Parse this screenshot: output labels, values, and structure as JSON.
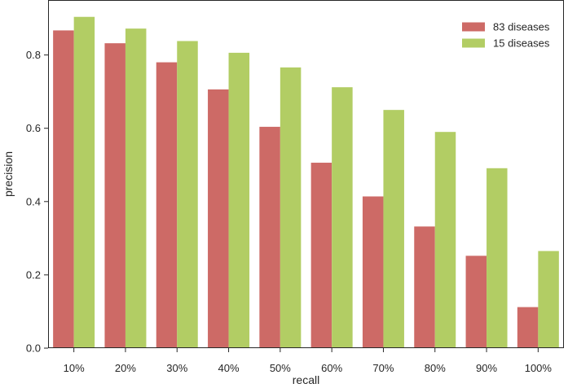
{
  "chart_data": {
    "type": "bar",
    "title": "",
    "xlabel": "recall",
    "ylabel": "precision",
    "categories": [
      "10%",
      "20%",
      "30%",
      "40%",
      "50%",
      "60%",
      "70%",
      "80%",
      "90%",
      "100%"
    ],
    "series": [
      {
        "name": "83 diseases",
        "color": "#cd6a66",
        "values": [
          0.867,
          0.832,
          0.78,
          0.706,
          0.604,
          0.506,
          0.414,
          0.332,
          0.252,
          0.112
        ]
      },
      {
        "name": "15 diseases",
        "color": "#b2cd64",
        "values": [
          0.904,
          0.872,
          0.838,
          0.806,
          0.766,
          0.712,
          0.65,
          0.59,
          0.491,
          0.265
        ]
      }
    ],
    "ylim": [
      0,
      0.95
    ],
    "yticks": [
      0.0,
      0.2,
      0.4,
      0.6,
      0.8
    ],
    "ytick_labels": [
      "0.0",
      "0.2",
      "0.4",
      "0.6",
      "0.8"
    ],
    "grid": false,
    "legend_position": "top-right"
  }
}
